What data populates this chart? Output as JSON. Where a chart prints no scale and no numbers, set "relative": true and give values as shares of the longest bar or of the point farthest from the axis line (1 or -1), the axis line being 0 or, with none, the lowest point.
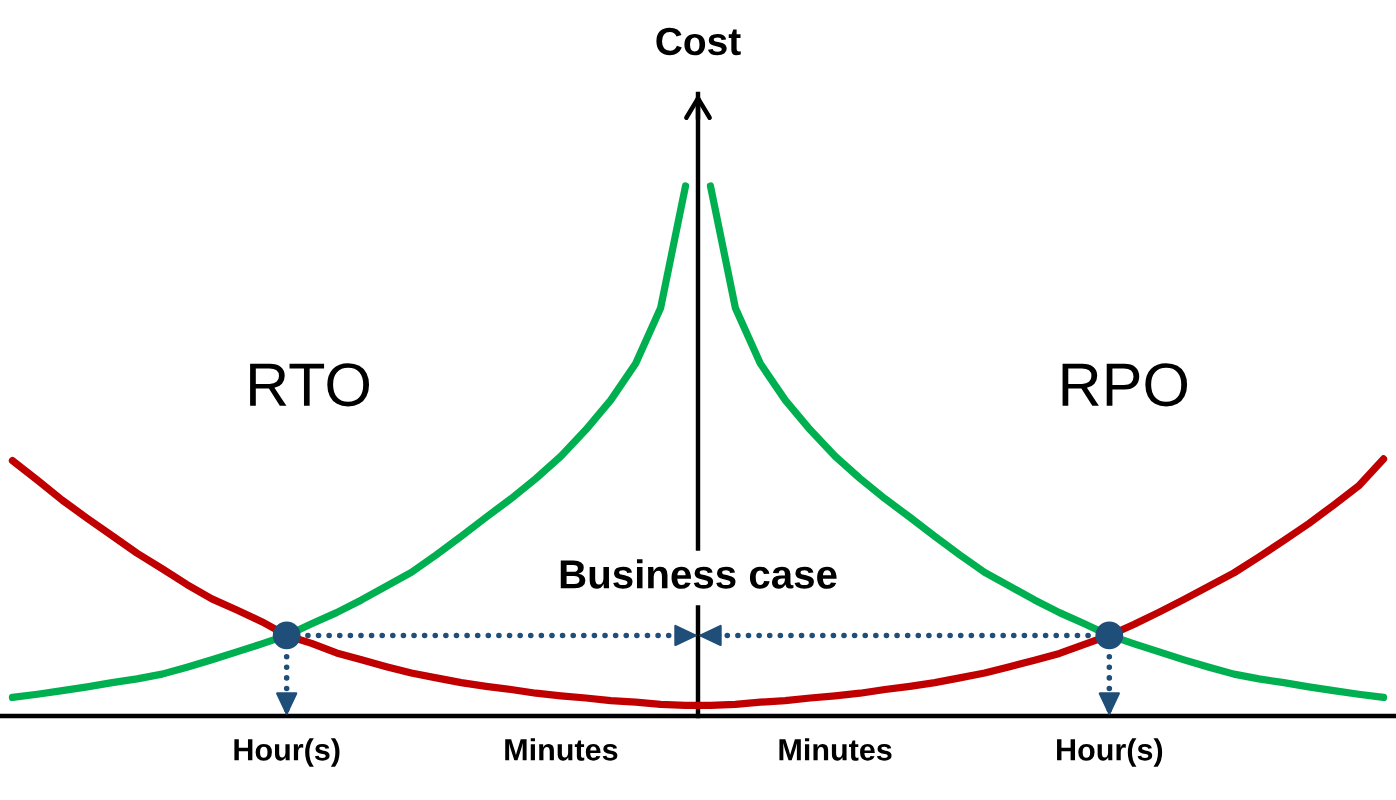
{
  "chart_data": {
    "type": "line",
    "relative": true,
    "ylabel": "Cost",
    "categories": [
      null,
      null,
      null,
      null,
      null,
      null,
      null,
      null,
      null,
      null,
      null,
      "Hour(s)",
      null,
      null,
      null,
      null,
      null,
      null,
      null,
      null,
      null,
      null,
      "Minutes",
      null,
      null,
      null,
      null,
      null,
      null,
      null,
      null,
      null,
      null,
      "Minutes",
      null,
      null,
      null,
      null,
      null,
      null,
      null,
      null,
      null,
      null,
      "Hour(s)",
      null,
      null,
      null,
      null,
      null,
      null,
      null,
      null,
      null,
      null,
      null
    ],
    "series": [
      {
        "color": "#c00000",
        "values": [
          0.482,
          0.445,
          0.407,
          0.373,
          0.34,
          0.307,
          0.278,
          0.248,
          0.221,
          0.2,
          0.178,
          0.152,
          0.137,
          0.119,
          0.106,
          0.093,
          0.081,
          0.072,
          0.063,
          0.056,
          0.05,
          0.043,
          0.038,
          0.034,
          0.029,
          0.026,
          0.022,
          0.02,
          0.02,
          0.022,
          0.026,
          0.029,
          0.034,
          0.038,
          0.043,
          0.05,
          0.056,
          0.063,
          0.072,
          0.081,
          0.093,
          0.105,
          0.118,
          0.135,
          0.152,
          0.173,
          0.196,
          0.22,
          0.245,
          0.27,
          0.3,
          0.331,
          0.363,
          0.398,
          0.434,
          0.485
        ]
      },
      {
        "color": "#00b050",
        "values": [
          0.035,
          0.041,
          0.048,
          0.055,
          0.063,
          0.07,
          0.079,
          0.092,
          0.106,
          0.121,
          0.136,
          0.152,
          0.174,
          0.195,
          0.219,
          0.245,
          0.271,
          0.304,
          0.339,
          0.375,
          0.41,
          0.448,
          0.49,
          0.54,
          0.596,
          0.665,
          0.77,
          1.0,
          null,
          null,
          null,
          null,
          null,
          null,
          null,
          null,
          null,
          null,
          null,
          null,
          null,
          null,
          null,
          null,
          null,
          null,
          null,
          null,
          null,
          null,
          null,
          null,
          null,
          null,
          null,
          null
        ]
      },
      {
        "color": "#00b050",
        "values": [
          null,
          null,
          null,
          null,
          null,
          null,
          null,
          null,
          null,
          null,
          null,
          null,
          null,
          null,
          null,
          null,
          null,
          null,
          null,
          null,
          null,
          null,
          null,
          null,
          null,
          null,
          null,
          null,
          1.0,
          0.77,
          0.665,
          0.596,
          0.54,
          0.49,
          0.448,
          0.41,
          0.375,
          0.339,
          0.304,
          0.271,
          0.245,
          0.219,
          0.195,
          0.174,
          0.152,
          0.136,
          0.121,
          0.106,
          0.092,
          0.079,
          0.07,
          0.063,
          0.055,
          0.048,
          0.041,
          0.035
        ]
      },
      {
        "type": "scatter",
        "color": "#1f4e79",
        "values": [
          null,
          null,
          null,
          null,
          null,
          null,
          null,
          null,
          null,
          null,
          null,
          0.152,
          null,
          null,
          null,
          null,
          null,
          null,
          null,
          null,
          null,
          null,
          null,
          null,
          null,
          null,
          null,
          null,
          null,
          null,
          null,
          null,
          null,
          null,
          null,
          null,
          null,
          null,
          null,
          null,
          null,
          null,
          null,
          null,
          0.152,
          null,
          null,
          null,
          null,
          null,
          null,
          null,
          null,
          null,
          null,
          null
        ]
      }
    ],
    "annotations": [
      "RTO",
      "RPO",
      "Business case"
    ]
  }
}
